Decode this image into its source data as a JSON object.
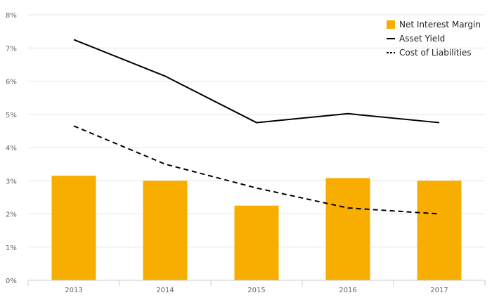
{
  "chart_data": {
    "type": "bar",
    "categories": [
      "2013",
      "2014",
      "2015",
      "2016",
      "2017"
    ],
    "series": [
      {
        "name": "Net Interest Margin",
        "type": "bar",
        "values": [
          3.15,
          3.0,
          2.25,
          3.08,
          3.0
        ]
      },
      {
        "name": "Asset Yield",
        "type": "line",
        "style": "solid",
        "values": [
          7.25,
          6.15,
          4.75,
          5.02,
          4.75
        ]
      },
      {
        "name": "Cost of Liabilities",
        "type": "line",
        "style": "dashed",
        "values": [
          4.65,
          3.5,
          2.78,
          2.18,
          2.0
        ]
      }
    ],
    "y_ticks": [
      "0%",
      "1%",
      "2%",
      "3%",
      "4%",
      "5%",
      "6%",
      "7%",
      "8%"
    ],
    "ylim": [
      0,
      8
    ],
    "grid": true,
    "legend_position": "top-right",
    "colors": {
      "bar": "#F7AE00",
      "line": "#000000",
      "grid": "#e6e6e6",
      "axis": "#cccccc",
      "tick_text": "#666666"
    }
  }
}
